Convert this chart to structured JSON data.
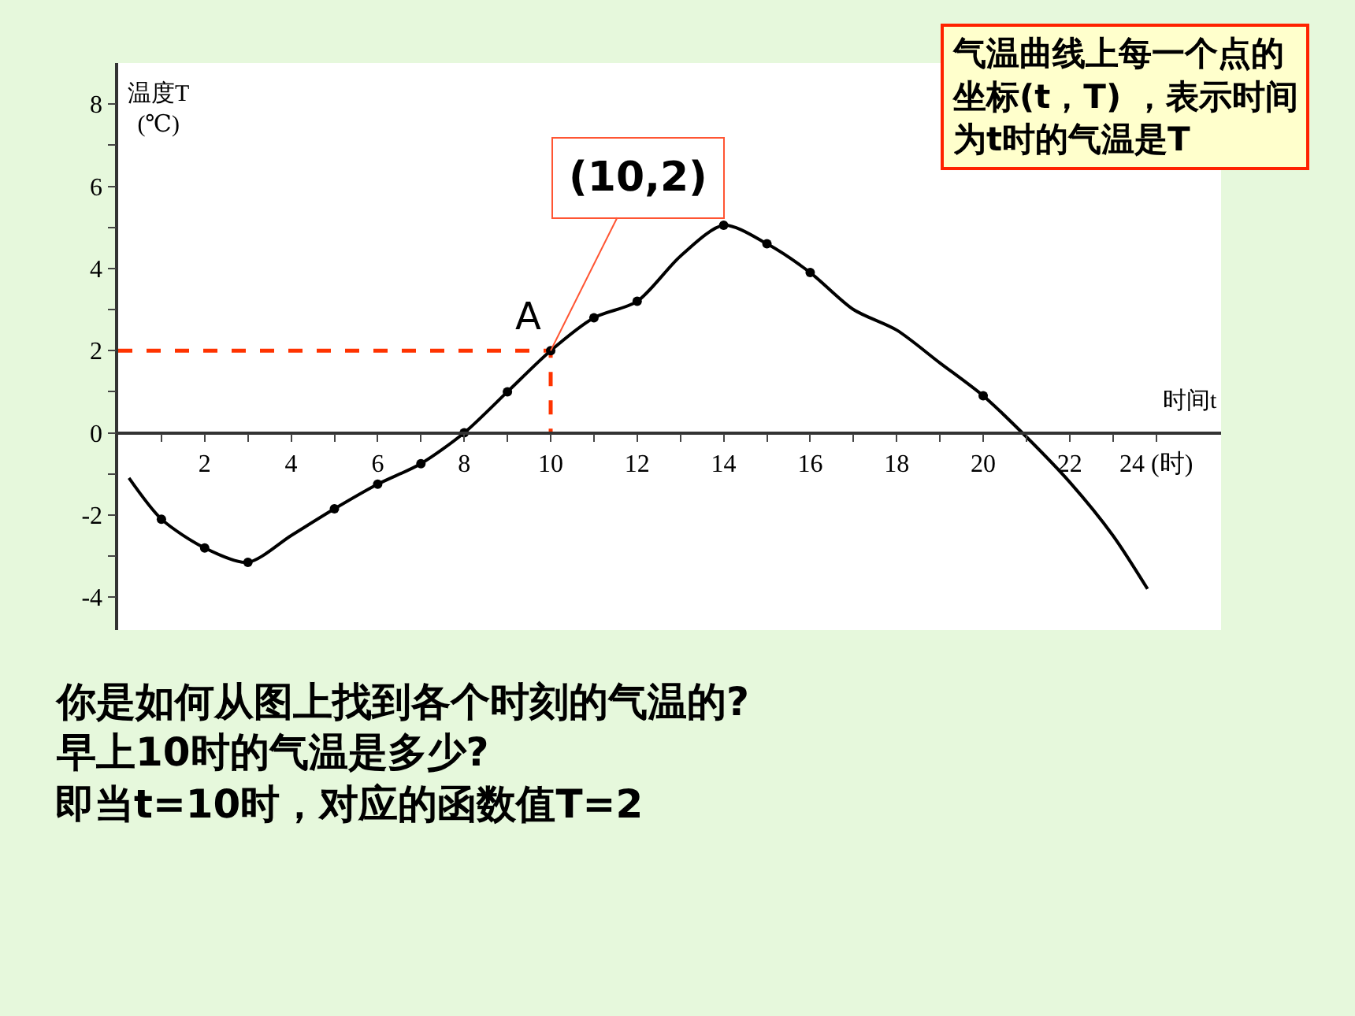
{
  "chart_data": {
    "type": "line",
    "xlabel": "时间t",
    "ylabel": "温度T\n(℃)",
    "series": [
      {
        "color": "#000000",
        "marker": "none",
        "line_style": "solid",
        "x": [
          0.25,
          1,
          2,
          3,
          4,
          5,
          6,
          7,
          8,
          9,
          10,
          11,
          12,
          13,
          14,
          15,
          16,
          17,
          18,
          19,
          20,
          21,
          22,
          23,
          23.8
        ],
        "values": [
          -1.1,
          -2.1,
          -2.8,
          -3.15,
          -2.5,
          -1.85,
          -1.25,
          -0.75,
          0,
          1,
          2,
          2.8,
          3.2,
          4.3,
          5.05,
          4.6,
          3.9,
          3.0,
          2.5,
          1.7,
          0.9,
          -0.1,
          -1.2,
          -2.5,
          -3.8
        ]
      },
      {
        "color": "#ff3300",
        "marker": "none",
        "line_style": "dashed",
        "x": [
          0,
          10,
          10
        ],
        "values": [
          2,
          2,
          0
        ]
      },
      {
        "type": "scatter",
        "color": "#000000",
        "marker": "circle",
        "x": [
          1,
          2,
          3,
          5,
          6,
          7,
          8,
          9,
          10,
          11,
          12,
          14,
          15,
          16,
          20
        ],
        "values": [
          -2.1,
          -2.8,
          -3.15,
          -1.85,
          -1.25,
          -0.75,
          0,
          1,
          2,
          2.8,
          3.2,
          5.05,
          4.6,
          3.9,
          0.9
        ]
      }
    ],
    "xlim": [
      0,
      25.5
    ],
    "ylim": [
      -4.8,
      9
    ],
    "xticks": [
      {
        "value": 1,
        "label": null
      },
      2,
      {
        "value": 3,
        "label": null
      },
      4,
      {
        "value": 5,
        "label": null
      },
      6,
      {
        "value": 7,
        "label": null
      },
      8,
      {
        "value": 9,
        "label": null
      },
      10,
      {
        "value": 11,
        "label": null
      },
      12,
      {
        "value": 13,
        "label": null
      },
      14,
      {
        "value": 15,
        "label": null
      },
      16,
      {
        "value": 17,
        "label": null
      },
      18,
      {
        "value": 19,
        "label": null
      },
      20,
      {
        "value": 21,
        "label": null
      },
      22,
      {
        "value": 23,
        "label": null
      },
      {
        "value": 24,
        "label": "24 (时)"
      }
    ],
    "yticks": [
      -4,
      {
        "value": -3,
        "label": null
      },
      -2,
      {
        "value": -1,
        "label": null
      },
      0,
      {
        "value": 1,
        "label": null
      },
      2,
      {
        "value": 3,
        "label": null
      },
      4,
      {
        "value": 5,
        "label": null
      },
      6,
      {
        "value": 7,
        "label": null
      },
      8
    ],
    "annotations": [
      {
        "text": "A",
        "x": 10,
        "y": 2
      },
      {
        "text": "(10,2)",
        "x": 10,
        "y": 2
      },
      "气温曲线上每一个点的坐标(t，T) ，表示时间为t时的气温是T",
      "你是如何从图上找到各个时刻的气温的?",
      "早上10时的气温是多少?",
      "即当t=10时，对应的函数值T=2"
    ]
  }
}
